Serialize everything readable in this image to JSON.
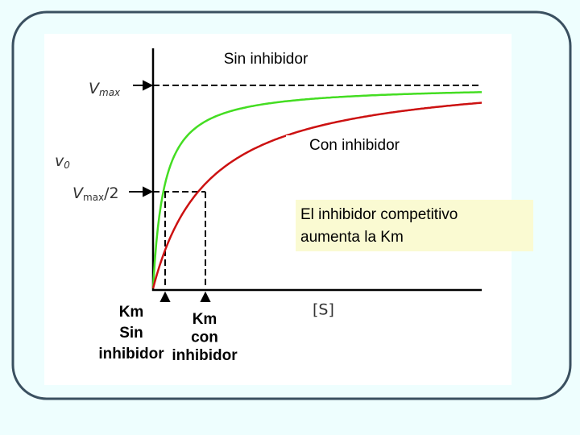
{
  "diagram": {
    "curve_labels": {
      "uninhibited": "Sin inhibidor",
      "inhibited": "Con inhibidor"
    },
    "y_axis": {
      "vmax": {
        "main": "V",
        "sub": "max"
      },
      "v0": {
        "main": "v",
        "sub": "0"
      },
      "half_vmax": {
        "main": "V",
        "sub": "max",
        "suffix": "/2"
      }
    },
    "x_axis": {
      "label": "[S]"
    },
    "note": {
      "lines": [
        "El inhibidor competitivo",
        "aumenta la Km"
      ]
    },
    "km_labels": [
      {
        "lines": [
          "Km",
          "Sin",
          "inhibidor"
        ]
      },
      {
        "lines": [
          "Km",
          "con",
          "inhibidor"
        ]
      }
    ]
  }
}
